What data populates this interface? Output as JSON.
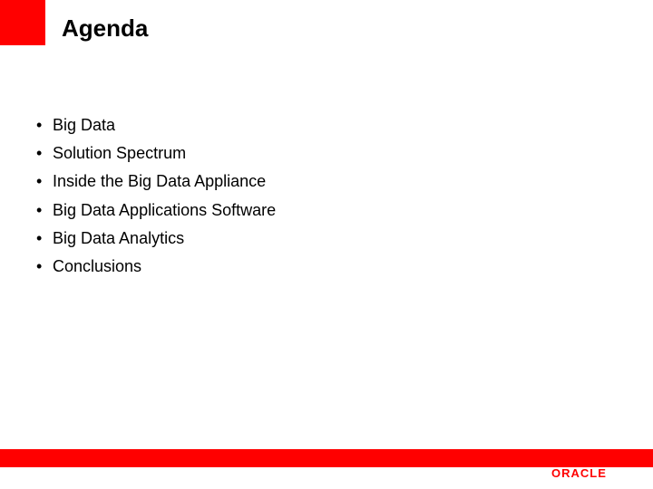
{
  "colors": {
    "accent": "#ff0000",
    "background": "#ffffff",
    "text": "#000000",
    "logo": "#ff0000"
  },
  "title": "Agenda",
  "title_fontsize": 26,
  "bullets": {
    "fontsize": 18,
    "items": [
      "Big Data",
      "Solution Spectrum",
      "Inside the Big Data Appliance",
      "Big Data Applications Software",
      "Big Data Analytics",
      "Conclusions"
    ]
  },
  "logo_text": "ORACLE"
}
